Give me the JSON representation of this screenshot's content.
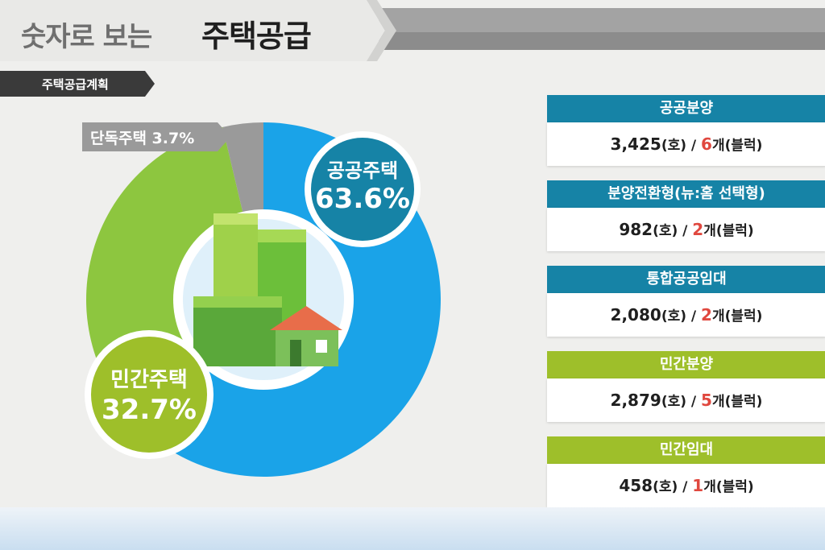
{
  "header": {
    "title_light": "숫자로 보는",
    "title_dark": "주택공급",
    "section_tab": "주택공급계획"
  },
  "colors": {
    "public_housing": "#1aa3e8",
    "private_housing": "#8dc63f",
    "detached_housing": "#9a9a9a",
    "public_callout": "#1683a6",
    "private_callout": "#9ebf2a",
    "public_block_header": "#1683a6",
    "private_block_header": "#9ebf2a",
    "accent_red": "#e0483f"
  },
  "chart_data": {
    "type": "pie",
    "title": "",
    "slices": [
      {
        "label": "공공주택",
        "value": 63.6,
        "display": "63.6%"
      },
      {
        "label": "민간주택",
        "value": 32.7,
        "display": "32.7%"
      },
      {
        "label": "단독주택",
        "value": 3.7,
        "display": "3.7%"
      }
    ],
    "callouts": {
      "public": {
        "label": "공공주택",
        "value_text": "63.6%"
      },
      "private": {
        "label": "민간주택",
        "value_text": "32.7%"
      },
      "detached": {
        "text": "단독주택 3.7%"
      }
    }
  },
  "blocks": [
    {
      "title": "공공분양",
      "units": "3,425",
      "units_suffix": "(호) / ",
      "count": "6",
      "count_suffix": "개(블럭)",
      "group": "public"
    },
    {
      "title": "분양전환형(뉴:홈 선택형)",
      "units": "982",
      "units_suffix": "(호) / ",
      "count": "2",
      "count_suffix": "개(블럭)",
      "group": "public"
    },
    {
      "title": "통합공공임대",
      "units": "2,080",
      "units_suffix": "(호) / ",
      "count": "2",
      "count_suffix": "개(블럭)",
      "group": "public"
    },
    {
      "title": "민간분양",
      "units": "2,879",
      "units_suffix": "(호) / ",
      "count": "5",
      "count_suffix": "개(블럭)",
      "group": "private"
    },
    {
      "title": "민간임대",
      "units": "458",
      "units_suffix": "(호) / ",
      "count": "1",
      "count_suffix": "개(블럭)",
      "group": "private"
    }
  ]
}
